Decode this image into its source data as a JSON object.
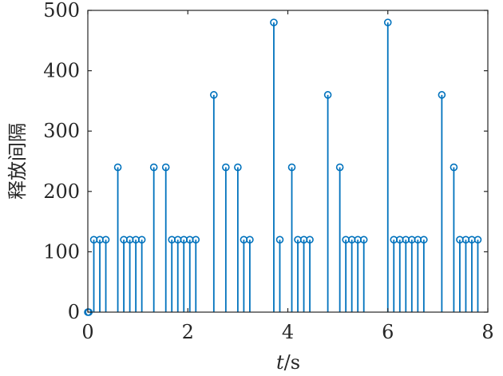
{
  "chart_data": {
    "type": "stem",
    "xlabel_var": "t",
    "xlabel_unit": "/s",
    "ylabel": "释放间隔",
    "xlim": [
      0,
      8
    ],
    "ylim": [
      0,
      500
    ],
    "xticks": [
      "0",
      "2",
      "4",
      "6",
      "8"
    ],
    "yticks": [
      "0",
      "100",
      "200",
      "300",
      "400",
      "500"
    ],
    "grid": false,
    "color": "#0072bd",
    "x": [
      0,
      0.02,
      0.12,
      0.24,
      0.36,
      0.6,
      0.72,
      0.84,
      0.96,
      1.08,
      1.32,
      1.56,
      1.68,
      1.8,
      1.92,
      2.04,
      2.16,
      2.52,
      2.76,
      3.0,
      3.12,
      3.24,
      3.72,
      3.84,
      4.08,
      4.2,
      4.32,
      4.44,
      4.8,
      5.04,
      5.16,
      5.28,
      5.4,
      5.52,
      6.0,
      6.12,
      6.24,
      6.36,
      6.48,
      6.6,
      6.72,
      7.08,
      7.32,
      7.44,
      7.56,
      7.68,
      7.8
    ],
    "y": [
      0,
      0,
      120,
      120,
      120,
      240,
      120,
      120,
      120,
      120,
      240,
      240,
      120,
      120,
      120,
      120,
      120,
      360,
      240,
      240,
      120,
      120,
      480,
      120,
      240,
      120,
      120,
      120,
      360,
      240,
      120,
      120,
      120,
      120,
      480,
      120,
      120,
      120,
      120,
      120,
      120,
      360,
      240,
      120,
      120,
      120,
      120
    ]
  }
}
